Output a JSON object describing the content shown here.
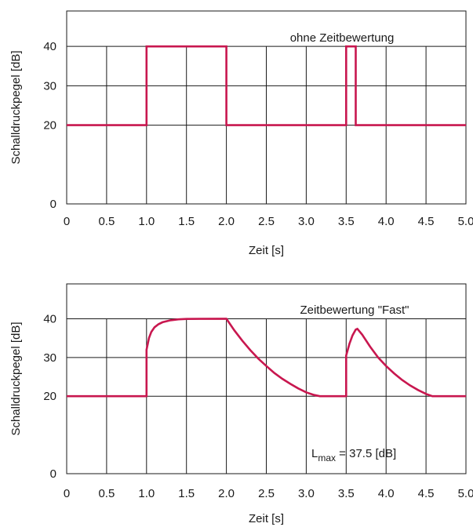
{
  "colors": {
    "series": "#c8174f",
    "axis": "#1a1a1a",
    "background": "#ffffff"
  },
  "chart_data": [
    {
      "type": "line",
      "annotation": "ohne Zeitbewertung",
      "xlabel": "Zeit [s]",
      "ylabel": "Schalldruckpegel [dB]",
      "xlim": [
        0,
        5.0
      ],
      "ylim": [
        0,
        49
      ],
      "x_ticks": [
        "0",
        "0.5",
        "1.0",
        "1.5",
        "2.0",
        "2.5",
        "3.0",
        "3.5",
        "4.0",
        "4.5",
        "5.0"
      ],
      "x_tick_values": [
        0,
        0.5,
        1.0,
        1.5,
        2.0,
        2.5,
        3.0,
        3.5,
        4.0,
        4.5,
        5.0
      ],
      "y_ticks": [
        "0",
        "20",
        "30",
        "40"
      ],
      "y_tick_values": [
        0,
        20,
        30,
        40
      ],
      "grid_y": [
        20,
        30,
        40
      ],
      "series": [
        {
          "points": [
            [
              0,
              20
            ],
            [
              1.0,
              20
            ],
            [
              1.0,
              40
            ],
            [
              2.0,
              40
            ],
            [
              2.0,
              20
            ],
            [
              3.5,
              20
            ],
            [
              3.5,
              40
            ],
            [
              3.62,
              40
            ],
            [
              3.62,
              20
            ],
            [
              5.0,
              20
            ]
          ]
        }
      ]
    },
    {
      "type": "line",
      "annotation": "Zeitbewertung \"Fast\"",
      "annotation2_main": "L",
      "annotation2_sub": "max",
      "annotation2_rest": " = 37.5 [dB]",
      "xlabel": "Zeit [s]",
      "ylabel": "Schalldruckpegel [dB]",
      "xlim": [
        0,
        5.0
      ],
      "ylim": [
        0,
        49
      ],
      "x_ticks": [
        "0",
        "0.5",
        "1.0",
        "1.5",
        "2.0",
        "2.5",
        "3.0",
        "3.5",
        "4.0",
        "4.5",
        "5.0"
      ],
      "x_tick_values": [
        0,
        0.5,
        1.0,
        1.5,
        2.0,
        2.5,
        3.0,
        3.5,
        4.0,
        4.5,
        5.0
      ],
      "y_ticks": [
        "0",
        "20",
        "30",
        "40"
      ],
      "y_tick_values": [
        0,
        20,
        30,
        40
      ],
      "grid_y": [
        20,
        30,
        40
      ],
      "series": [
        {
          "points": [
            [
              0,
              20
            ],
            [
              1.0,
              20
            ],
            [
              1.0,
              32.0
            ],
            [
              1.03,
              35.0
            ],
            [
              1.06,
              36.6
            ],
            [
              1.1,
              37.8
            ],
            [
              1.15,
              38.6
            ],
            [
              1.2,
              39.1
            ],
            [
              1.3,
              39.6
            ],
            [
              1.4,
              39.85
            ],
            [
              1.5,
              39.95
            ],
            [
              2.0,
              40
            ],
            [
              2.1,
              37.0
            ],
            [
              2.2,
              34.3
            ],
            [
              2.3,
              31.9
            ],
            [
              2.4,
              29.7
            ],
            [
              2.5,
              27.8
            ],
            [
              2.6,
              26.0
            ],
            [
              2.7,
              24.5
            ],
            [
              2.8,
              23.2
            ],
            [
              2.9,
              22.0
            ],
            [
              3.0,
              21.0
            ],
            [
              3.1,
              20.3
            ],
            [
              3.17,
              20.0
            ],
            [
              3.5,
              20
            ],
            [
              3.5,
              30.5
            ],
            [
              3.54,
              33.5
            ],
            [
              3.58,
              35.7
            ],
            [
              3.62,
              37.2
            ],
            [
              3.64,
              37.4
            ],
            [
              3.7,
              35.9
            ],
            [
              3.8,
              32.8
            ],
            [
              3.9,
              30.0
            ],
            [
              4.0,
              27.8
            ],
            [
              4.1,
              25.9
            ],
            [
              4.2,
              24.2
            ],
            [
              4.3,
              22.8
            ],
            [
              4.4,
              21.6
            ],
            [
              4.5,
              20.6
            ],
            [
              4.58,
              20.0
            ],
            [
              5.0,
              20
            ]
          ]
        }
      ]
    }
  ]
}
